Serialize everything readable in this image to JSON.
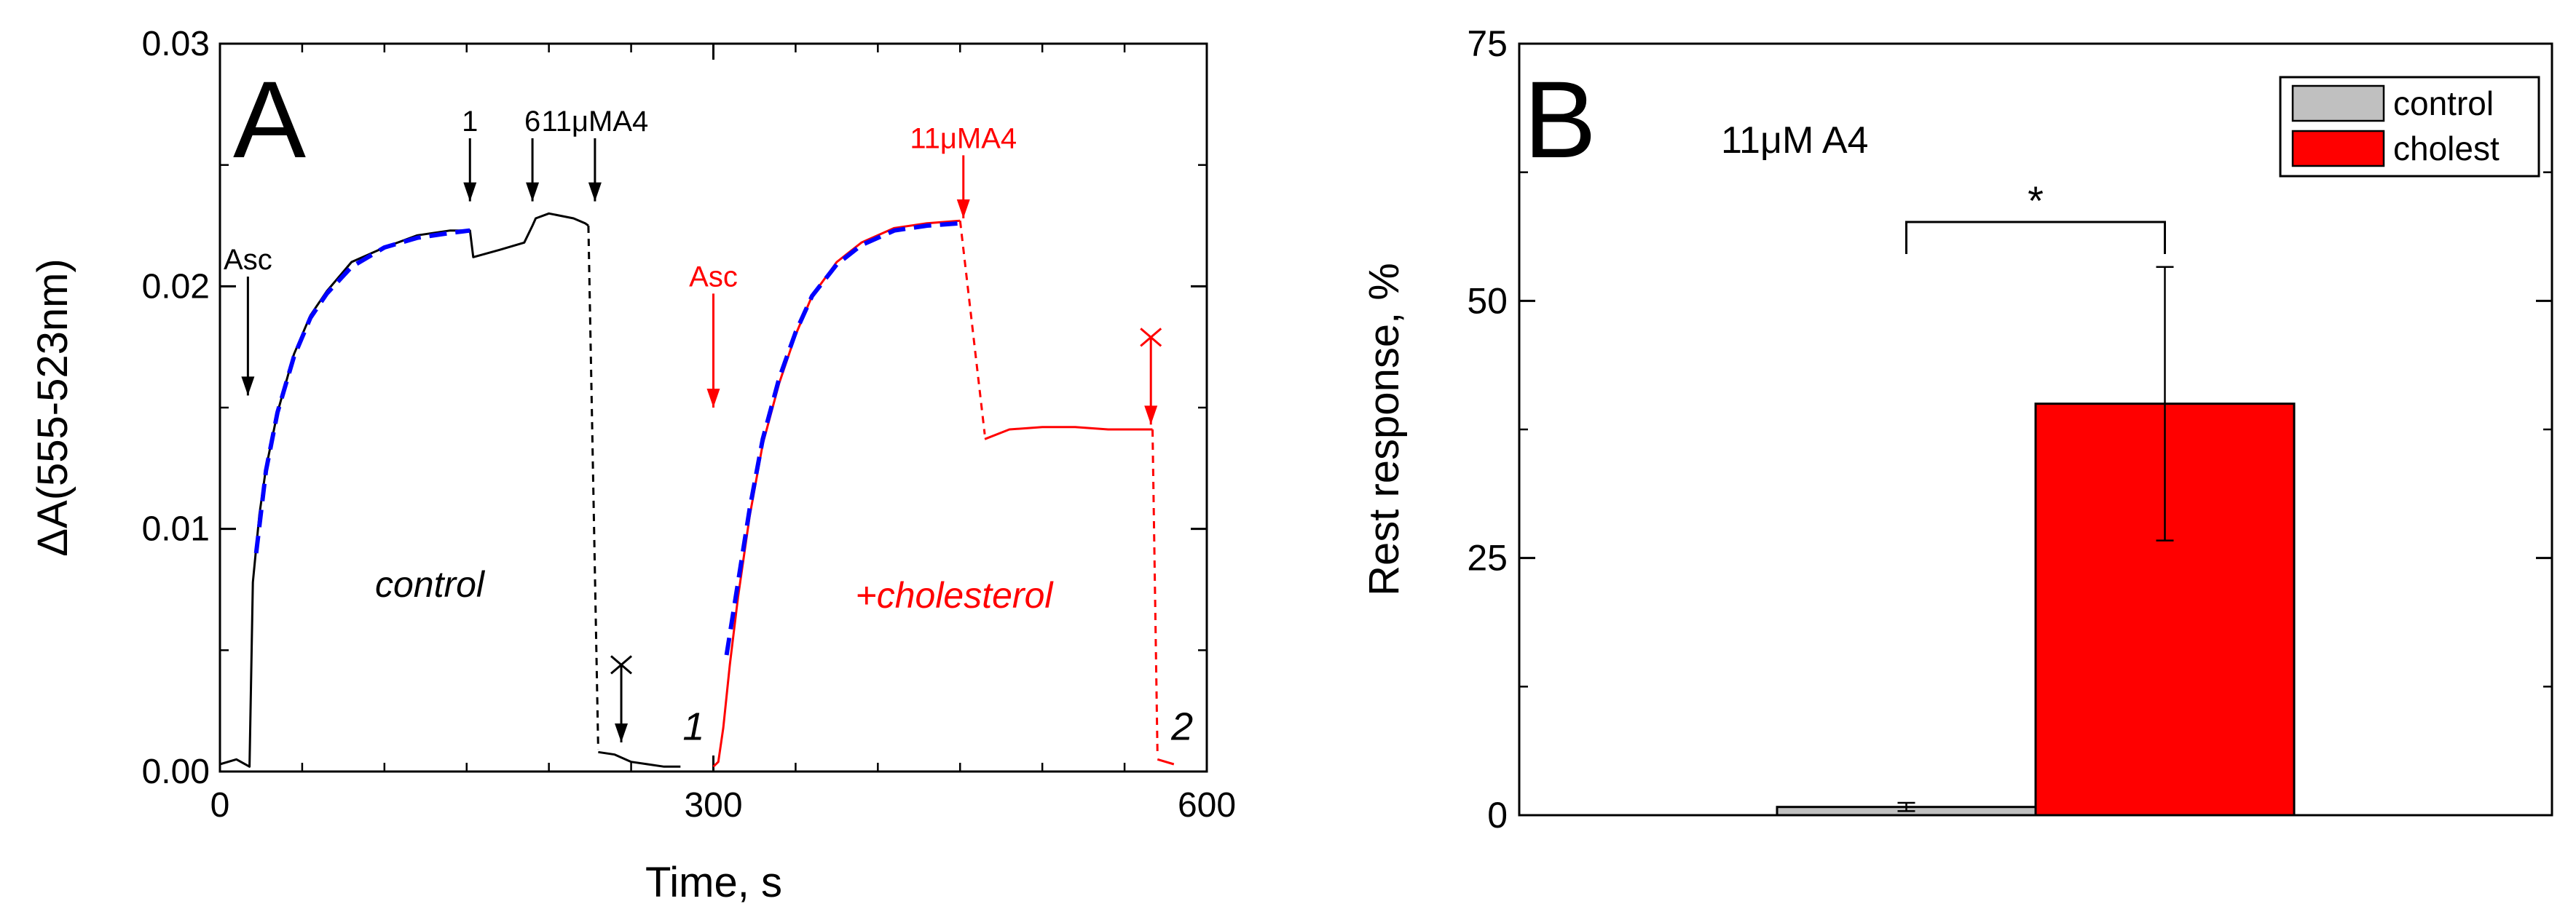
{
  "chart_data": [
    {
      "panel_label": "A",
      "type": "line",
      "xlabel": "Time, s",
      "ylabel": "ΔA(555-523nm)",
      "xlim": [
        0,
        600
      ],
      "ylim": [
        0,
        0.03
      ],
      "x_ticks": [
        0,
        300,
        600
      ],
      "x_tick_labels": [
        "0",
        "300",
        "600"
      ],
      "y_ticks": [
        0,
        0.01,
        0.02,
        0.03
      ],
      "y_tick_labels": [
        "0.00",
        "0.01",
        "0.02",
        "0.03"
      ],
      "grid": false,
      "series": [
        {
          "color": "#000000",
          "style": "solid",
          "x": [
            0,
            10,
            18,
            20,
            22,
            24,
            28,
            35,
            45,
            55,
            65,
            80,
            100,
            120,
            140,
            152,
            154,
            170,
            185,
            190,
            192,
            200,
            215,
            222,
            224
          ],
          "y": [
            0.0003,
            0.0005,
            0.0002,
            0.0078,
            0.0092,
            0.0106,
            0.0125,
            0.0148,
            0.0172,
            0.0188,
            0.0198,
            0.021,
            0.0216,
            0.0221,
            0.0223,
            0.0223,
            0.0212,
            0.0215,
            0.0218,
            0.0225,
            0.0228,
            0.023,
            0.0228,
            0.0226,
            0.0225
          ]
        },
        {
          "color": "#000000",
          "style": "dashed",
          "x": [
            224,
            230
          ],
          "y": [
            0.0225,
            0.0009
          ]
        },
        {
          "color": "#000000",
          "style": "solid",
          "x": [
            230,
            240,
            250,
            260,
            270,
            280
          ],
          "y": [
            0.0008,
            0.0007,
            0.0004,
            0.0003,
            0.0002,
            0.0002
          ]
        },
        {
          "color": "#ff0000",
          "style": "solid",
          "x": [
            300,
            303,
            306,
            310,
            315,
            322,
            330,
            340,
            350,
            360,
            375,
            390,
            410,
            430,
            450
          ],
          "y": [
            0.0002,
            0.0004,
            0.0018,
            0.0044,
            0.0072,
            0.0105,
            0.0135,
            0.016,
            0.018,
            0.0196,
            0.021,
            0.0218,
            0.0224,
            0.0226,
            0.0227
          ]
        },
        {
          "color": "#ff0000",
          "style": "dashed",
          "x": [
            450,
            465
          ],
          "y": [
            0.0227,
            0.0139
          ]
        },
        {
          "color": "#ff0000",
          "style": "solid",
          "x": [
            465,
            480,
            500,
            520,
            540,
            560,
            567
          ],
          "y": [
            0.0137,
            0.0141,
            0.0142,
            0.0142,
            0.0141,
            0.0141,
            0.0141
          ]
        },
        {
          "color": "#ff0000",
          "style": "dashed",
          "x": [
            567,
            570
          ],
          "y": [
            0.0141,
            0.0007
          ]
        },
        {
          "color": "#ff0000",
          "style": "solid",
          "x": [
            570,
            580
          ],
          "y": [
            0.0005,
            0.0003
          ]
        },
        {
          "color": "#0000ff",
          "style": "dashed",
          "x": [
            22,
            28,
            35,
            45,
            55,
            65,
            80,
            100,
            120,
            140,
            152
          ],
          "y": [
            0.009,
            0.0124,
            0.0148,
            0.0171,
            0.0187,
            0.0197,
            0.0208,
            0.0216,
            0.022,
            0.0222,
            0.0223
          ]
        },
        {
          "color": "#0000ff",
          "style": "dashed",
          "x": [
            308,
            315,
            322,
            330,
            340,
            350,
            360,
            375,
            390,
            410,
            430,
            450
          ],
          "y": [
            0.0048,
            0.0078,
            0.0108,
            0.0137,
            0.0162,
            0.0181,
            0.0196,
            0.0209,
            0.0217,
            0.0223,
            0.0225,
            0.0226
          ]
        }
      ],
      "annotations": [
        {
          "text": "Asc",
          "x": 17,
          "y": 0.0207,
          "color": "#000000",
          "arrow_to_y": 0.0155
        },
        {
          "text": "1",
          "x": 152,
          "y": 0.0264,
          "color": "#000000",
          "arrow_to_y": 0.0235
        },
        {
          "text": "6",
          "x": 190,
          "y": 0.0264,
          "color": "#000000",
          "arrow_to_y": 0.0235
        },
        {
          "text": "11μMA4",
          "x": 228,
          "y": 0.0264,
          "color": "#000000",
          "arrow_to_y": 0.0235
        },
        {
          "text": "Asc",
          "x": 300,
          "y": 0.02,
          "color": "#ff0000",
          "arrow_to_y": 0.015
        },
        {
          "text": "11μMA4",
          "x": 452,
          "y": 0.0257,
          "color": "#ff0000",
          "arrow_to_y": 0.0228
        },
        {
          "text": "1",
          "x": 288,
          "y": 0.0013,
          "color": "#000000"
        },
        {
          "text": "2",
          "x": 585,
          "y": 0.0013,
          "color": "#000000"
        }
      ],
      "cross_markers": [
        {
          "x": 244,
          "y": 0.0044,
          "color": "#000000",
          "arrow_to_y": 0.0012
        },
        {
          "x": 566,
          "y": 0.0179,
          "color": "#ff0000",
          "arrow_to_y": 0.0143
        }
      ],
      "condition_labels": [
        {
          "text": "control",
          "color": "#000000"
        },
        {
          "text": "+cholesterol",
          "color": "#ff0000"
        }
      ]
    },
    {
      "panel_label": "B",
      "type": "bar",
      "ylabel": "Rest response, %",
      "ylim": [
        0,
        75
      ],
      "y_ticks": [
        0,
        25,
        50,
        75
      ],
      "y_tick_labels": [
        "0",
        "25",
        "50",
        "75"
      ],
      "annotation": "11μM A4",
      "categories": [
        "control",
        "cholest"
      ],
      "values": [
        0.8,
        40
      ],
      "errors": [
        0.4,
        13.3
      ],
      "colors": [
        "#c0c0c0",
        "#ff0000"
      ],
      "legend": {
        "placement": "top-right",
        "entries": [
          "control",
          "cholest"
        ]
      },
      "significance": {
        "text": "*",
        "between": [
          "control",
          "cholest"
        ]
      }
    }
  ]
}
